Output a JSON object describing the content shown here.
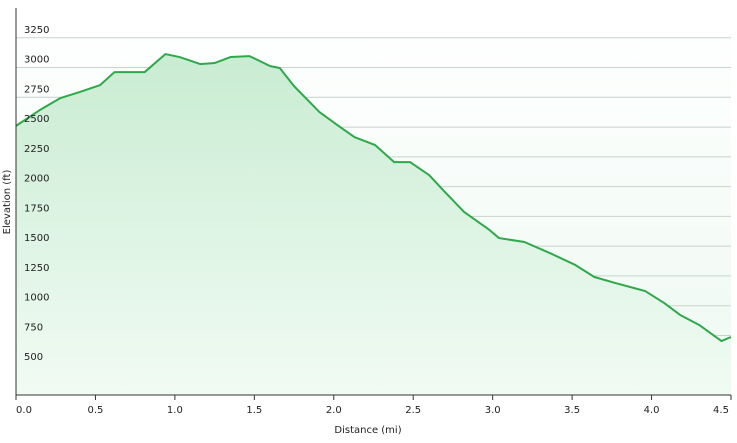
{
  "chart_data": {
    "type": "line",
    "xlabel": "Distance (mi)",
    "ylabel": "Elevation (ft)",
    "x": [
      0,
      0.15,
      0.28,
      0.4,
      0.53,
      0.62,
      0.81,
      0.94,
      1.03,
      1.16,
      1.25,
      1.35,
      1.47,
      1.6,
      1.66,
      1.75,
      1.91,
      2.04,
      2.13,
      2.26,
      2.38,
      2.48,
      2.6,
      2.7,
      2.82,
      2.98,
      3.04,
      3.2,
      3.36,
      3.52,
      3.64,
      3.77,
      3.96,
      4.08,
      4.18,
      4.3,
      4.44,
      4.5
    ],
    "values": [
      2510,
      2643,
      2744,
      2794,
      2853,
      2962,
      2962,
      3113,
      3088,
      3029,
      3038,
      3088,
      3096,
      3012,
      2996,
      2844,
      2626,
      2500,
      2416,
      2349,
      2206,
      2206,
      2097,
      1954,
      1787,
      1636,
      1568,
      1535,
      1442,
      1342,
      1241,
      1191,
      1123,
      1022,
      922,
      838,
      703,
      737
    ],
    "color": "#2fa84a",
    "xlim": [
      0,
      4.5
    ],
    "ylim": [
      250,
      3500
    ],
    "xticks": [
      {
        "value": 0,
        "label": "0.0"
      },
      0.5,
      {
        "value": 1,
        "label": "1.0"
      },
      1.5,
      {
        "value": 2,
        "label": "2.0"
      },
      2.5,
      {
        "value": 3,
        "label": "3.0"
      },
      3.5,
      {
        "value": 4,
        "label": "4.0"
      },
      4.5
    ],
    "yticks": [
      500,
      750,
      1000,
      1250,
      1500,
      1750,
      2000,
      2250,
      2500,
      2750,
      3000,
      3250
    ],
    "grid": true
  }
}
